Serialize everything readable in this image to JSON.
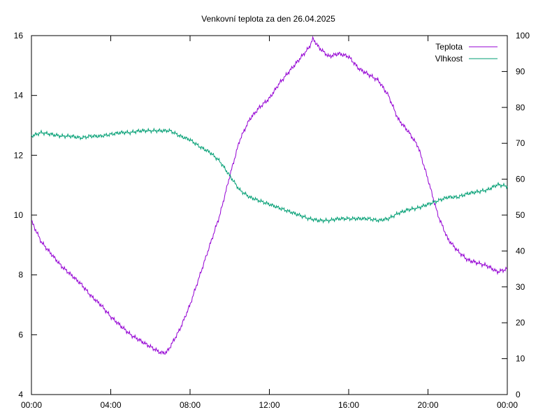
{
  "chart_data": {
    "type": "line",
    "title": "Venkovní teplota za den 26.04.2025",
    "x_ticks": [
      "00:00",
      "04:00",
      "08:00",
      "12:00",
      "16:00",
      "20:00",
      "00:00"
    ],
    "x_range_hours": [
      0,
      24
    ],
    "y_left": {
      "ticks": [
        "4",
        "6",
        "8",
        "10",
        "12",
        "14",
        "16"
      ],
      "range": [
        4,
        16
      ]
    },
    "y_right": {
      "ticks": [
        "0",
        "10",
        "20",
        "30",
        "40",
        "50",
        "60",
        "70",
        "80",
        "90",
        "100"
      ],
      "range": [
        0,
        100
      ]
    },
    "grid": false,
    "legend_position": "top-right",
    "series": [
      {
        "name": "Teplota",
        "axis": "left",
        "color": "#9400d3",
        "hours": [
          0,
          0.5,
          1,
          1.5,
          2,
          2.5,
          3,
          3.5,
          4,
          4.5,
          5,
          5.5,
          6,
          6.5,
          6.8,
          7,
          7.5,
          8,
          8.5,
          9,
          9.5,
          10,
          10.5,
          11,
          11.5,
          12,
          12.5,
          13,
          13.5,
          14,
          14.2,
          14.5,
          15,
          15.5,
          16,
          16.5,
          17,
          17.5,
          18,
          18.5,
          19,
          19.5,
          20,
          20.5,
          21,
          21.5,
          22,
          22.5,
          23,
          23.5,
          24
        ],
        "values": [
          9.8,
          9.1,
          8.7,
          8.3,
          8.0,
          7.7,
          7.3,
          7.0,
          6.6,
          6.3,
          6.0,
          5.8,
          5.6,
          5.4,
          5.4,
          5.6,
          6.2,
          7.0,
          8.0,
          9.0,
          10.0,
          11.3,
          12.5,
          13.2,
          13.6,
          13.9,
          14.4,
          14.8,
          15.2,
          15.6,
          15.9,
          15.6,
          15.3,
          15.4,
          15.3,
          14.9,
          14.7,
          14.5,
          14.0,
          13.2,
          12.8,
          12.3,
          11.2,
          10.0,
          9.2,
          8.8,
          8.5,
          8.4,
          8.3,
          8.1,
          8.2
        ]
      },
      {
        "name": "Vlhkost",
        "axis": "right",
        "color": "#009e73",
        "hours": [
          0,
          0.5,
          1,
          1.5,
          2,
          2.5,
          3,
          3.5,
          4,
          4.5,
          5,
          5.5,
          6,
          6.5,
          7,
          7.5,
          8,
          8.5,
          9,
          9.5,
          10,
          10.5,
          11,
          11.5,
          12,
          12.5,
          13,
          13.5,
          14,
          14.5,
          15,
          15.5,
          16,
          16.5,
          17,
          17.5,
          18,
          18.5,
          19,
          19.5,
          20,
          20.5,
          21,
          21.5,
          22,
          22.5,
          23,
          23.5,
          24
        ],
        "values": [
          72,
          73,
          72.5,
          72,
          72,
          71.5,
          72,
          72,
          72.5,
          73,
          73,
          73.5,
          73.5,
          73.5,
          73.5,
          72,
          71,
          69,
          67.5,
          65,
          61,
          57,
          55,
          54,
          53,
          52,
          51,
          50,
          49,
          48.5,
          48.5,
          49,
          49,
          49,
          49,
          48.5,
          49,
          50.5,
          51.5,
          52,
          53,
          54,
          55,
          55,
          56,
          56.5,
          57,
          58.5,
          58
        ]
      }
    ]
  }
}
